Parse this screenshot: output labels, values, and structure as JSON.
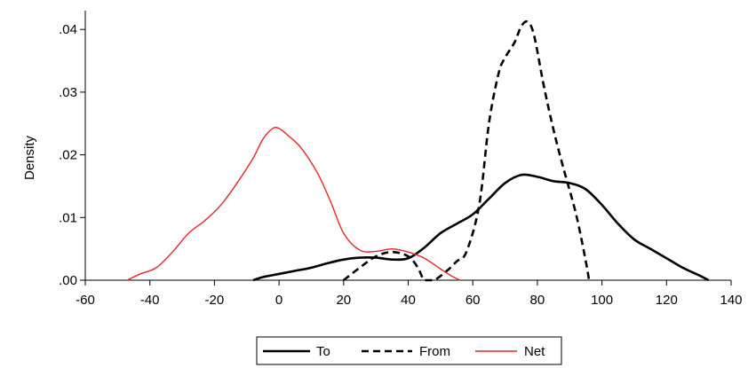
{
  "chart_data": {
    "type": "line",
    "title": "",
    "xlabel": "",
    "ylabel": "Density",
    "xlim": [
      -60,
      140
    ],
    "ylim": [
      0,
      0.043
    ],
    "x_ticks": [
      -60,
      -40,
      -20,
      0,
      20,
      40,
      60,
      80,
      100,
      120,
      140
    ],
    "x_tick_labels": [
      "-60",
      "-40",
      "-20",
      "0",
      "20",
      "40",
      "60",
      "80",
      "100",
      "120",
      "140"
    ],
    "y_ticks": [
      0,
      0.01,
      0.02,
      0.03,
      0.04
    ],
    "y_tick_labels": [
      ".00",
      ".01",
      ".02",
      ".03",
      ".04"
    ],
    "grid": false,
    "legend_position": "bottom-center",
    "series": [
      {
        "name": "To",
        "color": "#000000",
        "style": "solid",
        "points": [
          [
            -8,
            0.0
          ],
          [
            -5,
            0.0005
          ],
          [
            0,
            0.001
          ],
          [
            5,
            0.0015
          ],
          [
            10,
            0.002
          ],
          [
            15,
            0.0027
          ],
          [
            20,
            0.0033
          ],
          [
            25,
            0.0036
          ],
          [
            30,
            0.0036
          ],
          [
            35,
            0.0033
          ],
          [
            40,
            0.0035
          ],
          [
            45,
            0.0052
          ],
          [
            50,
            0.0075
          ],
          [
            55,
            0.009
          ],
          [
            60,
            0.0105
          ],
          [
            65,
            0.013
          ],
          [
            70,
            0.0155
          ],
          [
            75,
            0.0168
          ],
          [
            80,
            0.0165
          ],
          [
            85,
            0.0158
          ],
          [
            90,
            0.0155
          ],
          [
            95,
            0.0145
          ],
          [
            100,
            0.012
          ],
          [
            105,
            0.009
          ],
          [
            110,
            0.0065
          ],
          [
            115,
            0.005
          ],
          [
            120,
            0.0035
          ],
          [
            125,
            0.002
          ],
          [
            130,
            0.0008
          ],
          [
            133,
            0.0
          ]
        ]
      },
      {
        "name": "From",
        "color": "#000000",
        "style": "dashed",
        "points": [
          [
            20,
            0.0
          ],
          [
            25,
            0.002
          ],
          [
            30,
            0.0038
          ],
          [
            35,
            0.0045
          ],
          [
            40,
            0.0038
          ],
          [
            43,
            0.002
          ],
          [
            45,
            0.0
          ],
          [
            48,
            0.0
          ],
          [
            52,
            0.0015
          ],
          [
            55,
            0.003
          ],
          [
            58,
            0.0045
          ],
          [
            62,
            0.012
          ],
          [
            65,
            0.025
          ],
          [
            68,
            0.033
          ],
          [
            70,
            0.0355
          ],
          [
            73,
            0.038
          ],
          [
            75,
            0.0405
          ],
          [
            77,
            0.0412
          ],
          [
            79,
            0.039
          ],
          [
            82,
            0.031
          ],
          [
            85,
            0.024
          ],
          [
            88,
            0.018
          ],
          [
            92,
            0.0105
          ],
          [
            95,
            0.003
          ],
          [
            96,
            0.0
          ]
        ]
      },
      {
        "name": "Net",
        "color": "#e8262b",
        "style": "solid",
        "points": [
          [
            -47,
            0.0
          ],
          [
            -43,
            0.001
          ],
          [
            -38,
            0.002
          ],
          [
            -33,
            0.0045
          ],
          [
            -28,
            0.0075
          ],
          [
            -23,
            0.0095
          ],
          [
            -18,
            0.012
          ],
          [
            -13,
            0.0155
          ],
          [
            -8,
            0.0195
          ],
          [
            -5,
            0.0225
          ],
          [
            -2,
            0.0242
          ],
          [
            0,
            0.0242
          ],
          [
            3,
            0.023
          ],
          [
            7,
            0.021
          ],
          [
            12,
            0.017
          ],
          [
            16,
            0.0125
          ],
          [
            20,
            0.0075
          ],
          [
            25,
            0.0048
          ],
          [
            30,
            0.0046
          ],
          [
            35,
            0.005
          ],
          [
            40,
            0.0045
          ],
          [
            45,
            0.0035
          ],
          [
            50,
            0.0018
          ],
          [
            53,
            0.0008
          ],
          [
            56,
            0.0
          ]
        ]
      }
    ]
  }
}
